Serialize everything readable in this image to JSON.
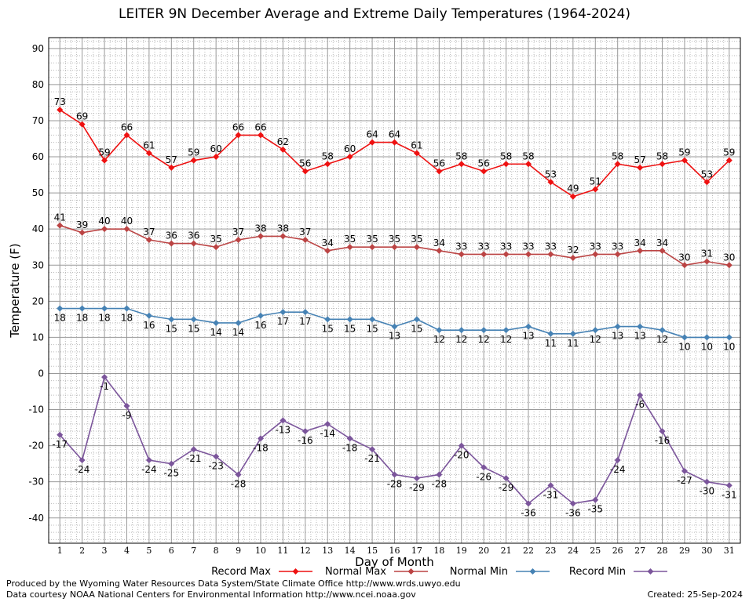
{
  "chart_data": {
    "type": "line",
    "title": "LEITER 9N December Average and Extreme Daily Temperatures (1964-2024)",
    "xlabel": "Day of Month",
    "ylabel": "Temperature (F)",
    "x": [
      1,
      2,
      3,
      4,
      5,
      6,
      7,
      8,
      9,
      10,
      11,
      12,
      13,
      14,
      15,
      16,
      17,
      18,
      19,
      20,
      21,
      22,
      23,
      24,
      25,
      26,
      27,
      28,
      29,
      30,
      31
    ],
    "ylim": [
      -47,
      93
    ],
    "yticks": [
      -40,
      -30,
      -20,
      -10,
      0,
      10,
      20,
      30,
      40,
      50,
      60,
      70,
      80,
      90
    ],
    "grid": true,
    "legend_position": "bottom",
    "series": [
      {
        "name": "Record Max",
        "color": "#ee1111",
        "label_pos": "above",
        "values": [
          73,
          69,
          59,
          66,
          61,
          57,
          59,
          60,
          66,
          66,
          62,
          56,
          58,
          60,
          64,
          64,
          61,
          56,
          58,
          56,
          58,
          58,
          53,
          49,
          51,
          58,
          57,
          58,
          59,
          53,
          59
        ]
      },
      {
        "name": "Normal Max",
        "color": "#bb4444",
        "label_pos": "above",
        "values": [
          41,
          39,
          40,
          40,
          37,
          36,
          36,
          35,
          37,
          38,
          38,
          37,
          34,
          35,
          35,
          35,
          35,
          34,
          33,
          33,
          33,
          33,
          33,
          32,
          33,
          33,
          34,
          34,
          30,
          31,
          30
        ]
      },
      {
        "name": "Normal Min",
        "color": "#4682b4",
        "label_pos": "below",
        "values": [
          18,
          18,
          18,
          18,
          16,
          15,
          15,
          14,
          14,
          16,
          17,
          17,
          15,
          15,
          15,
          13,
          15,
          12,
          12,
          12,
          12,
          13,
          11,
          11,
          12,
          13,
          13,
          12,
          10,
          10,
          10
        ]
      },
      {
        "name": "Record Min",
        "color": "#7b559b",
        "label_pos": "below",
        "values": [
          -17,
          -24,
          -1,
          -9,
          -24,
          -25,
          -21,
          -23,
          -28,
          -18,
          -13,
          -16,
          -14,
          -18,
          -21,
          -28,
          -29,
          -28,
          -20,
          -26,
          -29,
          -36,
          -31,
          -36,
          -35,
          -24,
          -6,
          -16,
          -27,
          -30,
          -31
        ]
      }
    ]
  },
  "footer": {
    "produced_by": "Produced by the Wyoming Water Resources Data System/State Climate Office http://www.wrds.uwyo.edu",
    "data_courtesy": "Data courtesy NOAA National Centers for Environmental Information http://www.ncei.noaa.gov",
    "created": "Created: 25-Sep-2024"
  }
}
